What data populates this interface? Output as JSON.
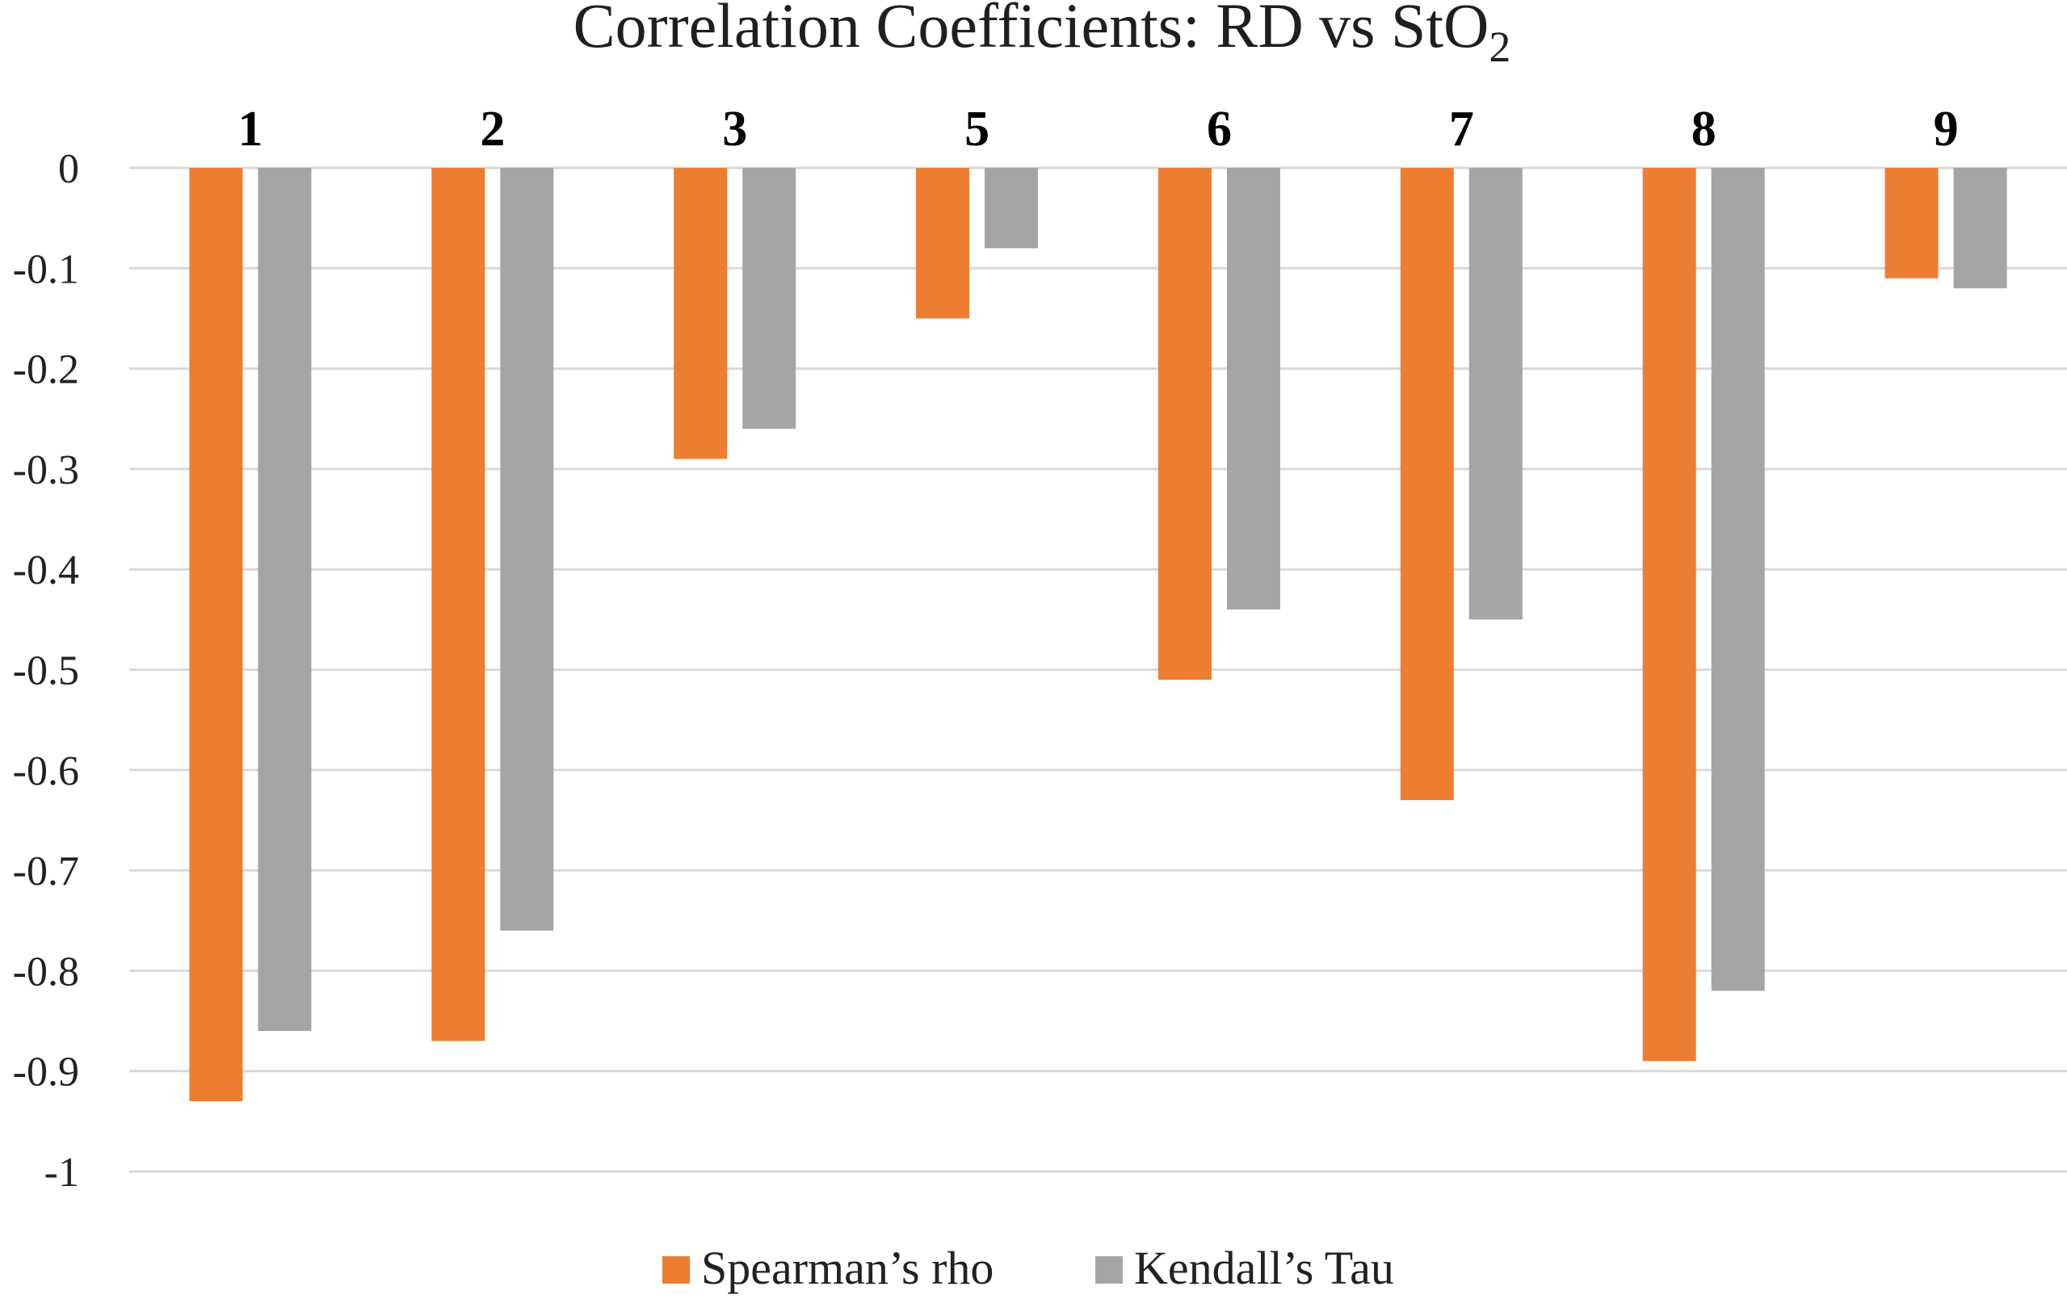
{
  "chart_data": {
    "type": "bar",
    "title": "Correlation Coefficients: RD vs StO",
    "title_subscript": "2",
    "xlabel": "",
    "ylabel": "",
    "categories": [
      "1",
      "2",
      "3",
      "5",
      "6",
      "7",
      "8",
      "9"
    ],
    "series": [
      {
        "name": "Spearman’s rho",
        "color": "#ED7D31",
        "values": [
          -0.93,
          -0.87,
          -0.29,
          -0.15,
          -0.51,
          -0.63,
          -0.89,
          -0.11
        ]
      },
      {
        "name": "Kendall’s Tau",
        "color": "#A5A5A5",
        "values": [
          -0.86,
          -0.76,
          -0.26,
          -0.08,
          -0.44,
          -0.45,
          -0.82,
          -0.12
        ]
      }
    ],
    "ylim": [
      -1,
      0
    ],
    "yticks": [
      "0",
      "-0.1",
      "-0.2",
      "-0.3",
      "-0.4",
      "-0.5",
      "-0.6",
      "-0.7",
      "-0.8",
      "-0.9",
      "-1"
    ],
    "ytick_values": [
      0,
      -0.1,
      -0.2,
      -0.3,
      -0.4,
      -0.5,
      -0.6,
      -0.7,
      -0.8,
      -0.9,
      -1
    ],
    "category_labels_position": "top",
    "grid": true,
    "gridline_color": "#D9D9D9",
    "legend_position": "bottom"
  }
}
